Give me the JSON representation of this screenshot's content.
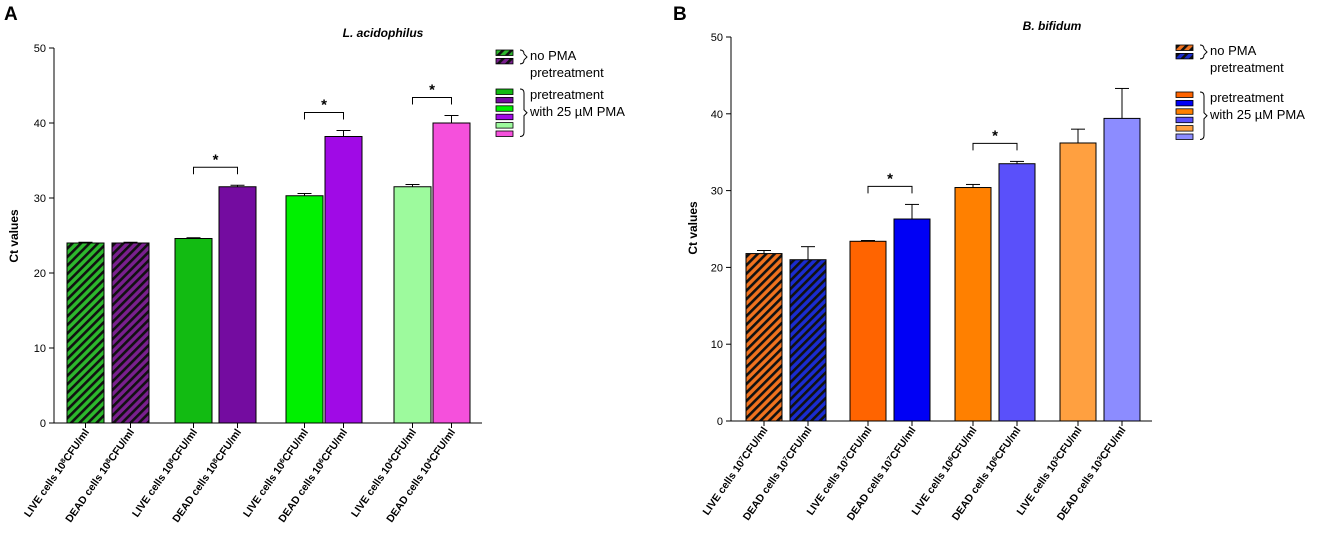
{
  "chart_data": [
    {
      "panel": "A",
      "type": "bar",
      "title": "L. acidophilus",
      "ylabel": "Ct values",
      "xlabel": "",
      "ylim": [
        0,
        50
      ],
      "yticks": [
        "0",
        "10",
        "20",
        "30",
        "40",
        "50"
      ],
      "categories": [
        {
          "pre": "LIVE cells 10",
          "exp": "8",
          "post": "CFU/ml"
        },
        {
          "pre": "DEAD cells 10",
          "exp": "8",
          "post": "CFU/ml"
        },
        {
          "pre": "LIVE cells 10",
          "exp": "8",
          "post": "CFU/ml"
        },
        {
          "pre": "DEAD cells 10",
          "exp": "8",
          "post": "CFU/ml"
        },
        {
          "pre": "LIVE cells 10",
          "exp": "6",
          "post": "CFU/ml"
        },
        {
          "pre": "DEAD cells 10",
          "exp": "6",
          "post": "CFU/ml"
        },
        {
          "pre": "LIVE cells 10",
          "exp": "4",
          "post": "CFU/ml"
        },
        {
          "pre": "DEAD cells 10",
          "exp": "4",
          "post": "CFU/ml"
        }
      ],
      "values": [
        24.0,
        24.0,
        24.6,
        31.5,
        30.3,
        38.2,
        31.5,
        40.0
      ],
      "errors": [
        0.1,
        0.1,
        0.1,
        0.2,
        0.3,
        0.8,
        0.3,
        1.0
      ],
      "colors": [
        "#2db82d",
        "#7a1f8f",
        "#12bb12",
        "#740ca0",
        "#00f000",
        "#a00ae6",
        "#9dfa9d",
        "#f550dc"
      ],
      "hatched": [
        true,
        true,
        false,
        false,
        false,
        false,
        false,
        false
      ],
      "significance": [
        {
          "from": 2,
          "to": 3,
          "label": "*"
        },
        {
          "from": 4,
          "to": 5,
          "label": "*"
        },
        {
          "from": 6,
          "to": 7,
          "label": "*"
        }
      ],
      "legend_groups": [
        {
          "label_lines": [
            "no PMA",
            "pretreatment"
          ],
          "items": [
            {
              "color": "#2db82d",
              "hatched": true
            },
            {
              "color": "#7a1f8f",
              "hatched": true
            }
          ]
        },
        {
          "label_lines": [
            "pretreatment",
            "with 25 µM PMA"
          ],
          "items": [
            {
              "color": "#12bb12",
              "hatched": false
            },
            {
              "color": "#740ca0",
              "hatched": false
            },
            {
              "color": "#00f000",
              "hatched": false
            },
            {
              "color": "#a00ae6",
              "hatched": false
            },
            {
              "color": "#9dfa9d",
              "hatched": false
            },
            {
              "color": "#f550dc",
              "hatched": false
            }
          ]
        }
      ]
    },
    {
      "panel": "B",
      "type": "bar",
      "title": "B. bifidum",
      "ylabel": "Ct values",
      "xlabel": "",
      "ylim": [
        0,
        50
      ],
      "yticks": [
        "0",
        "10",
        "20",
        "30",
        "40",
        "50"
      ],
      "categories": [
        {
          "pre": "LIVE cells 10",
          "exp": "7",
          "post": "CFU/ml"
        },
        {
          "pre": "DEAD cells 10",
          "exp": "7",
          "post": "CFU/ml"
        },
        {
          "pre": "LIVE cells 10",
          "exp": "7",
          "post": "CFU/ml"
        },
        {
          "pre": "DEAD cells 10",
          "exp": "7",
          "post": "CFU/ml"
        },
        {
          "pre": "LIVE cells 10",
          "exp": "6",
          "post": "CFU/ml"
        },
        {
          "pre": "DEAD cells 10",
          "exp": "6",
          "post": "CFU/ml"
        },
        {
          "pre": "LIVE cells 10",
          "exp": "3",
          "post": "CFU/ml"
        },
        {
          "pre": "DEAD cells 10",
          "exp": "3",
          "post": "CFU/ml"
        }
      ],
      "values": [
        21.8,
        21.0,
        23.4,
        26.3,
        30.4,
        33.5,
        36.2,
        39.4
      ],
      "errors": [
        0.4,
        1.7,
        0.1,
        1.9,
        0.4,
        0.3,
        1.8,
        3.9
      ],
      "colors": [
        "#f0721e",
        "#1a2cd0",
        "#ff6400",
        "#0000f5",
        "#ff8000",
        "#5a50fa",
        "#ffa040",
        "#8c8cff"
      ],
      "hatched": [
        true,
        true,
        false,
        false,
        false,
        false,
        false,
        false
      ],
      "significance": [
        {
          "from": 2,
          "to": 3,
          "label": "*"
        },
        {
          "from": 4,
          "to": 5,
          "label": "*"
        }
      ],
      "legend_groups": [
        {
          "label_lines": [
            "no PMA",
            "pretreatment"
          ],
          "items": [
            {
              "color": "#f0721e",
              "hatched": true
            },
            {
              "color": "#1a2cd0",
              "hatched": true
            }
          ]
        },
        {
          "label_lines": [
            "pretreatment",
            "with 25 µM PMA"
          ],
          "items": [
            {
              "color": "#ff6400",
              "hatched": false
            },
            {
              "color": "#0000f5",
              "hatched": false
            },
            {
              "color": "#ff8000",
              "hatched": false
            },
            {
              "color": "#5a50fa",
              "hatched": false
            },
            {
              "color": "#ffa040",
              "hatched": false
            },
            {
              "color": "#8c8cff",
              "hatched": false
            }
          ]
        }
      ]
    }
  ]
}
